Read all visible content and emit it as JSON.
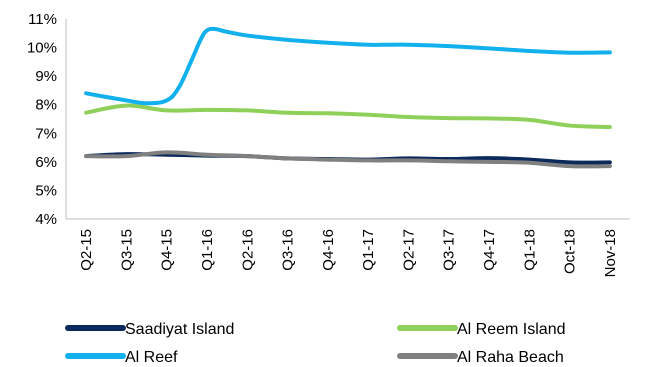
{
  "chart_data": {
    "type": "line",
    "title": "",
    "xlabel": "",
    "ylabel": "",
    "categories": [
      "Q2-15",
      "Q3-15",
      "Q4-15",
      "Q1-16",
      "Q2-16",
      "Q3-16",
      "Q4-16",
      "Q1-17",
      "Q2-17",
      "Q3-17",
      "Q4-17",
      "Q1-18",
      "Oct-18",
      "Nov-18"
    ],
    "yticks": [
      "4%",
      "5%",
      "6%",
      "7%",
      "8%",
      "9%",
      "10%",
      "11%"
    ],
    "ylim": [
      4,
      11
    ],
    "grid": false,
    "legend_position": "bottom",
    "series": [
      {
        "name": "Saadiyat Island",
        "color": "#0b2a5b",
        "points": [
          [
            0,
            6.2
          ],
          [
            1,
            6.27
          ],
          [
            2,
            6.25
          ],
          [
            3,
            6.22
          ],
          [
            4,
            6.2
          ],
          [
            5,
            6.12
          ],
          [
            6,
            6.1
          ],
          [
            7,
            6.08
          ],
          [
            8,
            6.12
          ],
          [
            9,
            6.1
          ],
          [
            10,
            6.13
          ],
          [
            11,
            6.08
          ],
          [
            12,
            5.98
          ],
          [
            13,
            5.98
          ]
        ]
      },
      {
        "name": "Al Reem Island",
        "color": "#8fd05a",
        "points": [
          [
            0,
            7.72
          ],
          [
            1,
            7.97
          ],
          [
            2,
            7.8
          ],
          [
            3,
            7.82
          ],
          [
            4,
            7.8
          ],
          [
            5,
            7.72
          ],
          [
            6,
            7.7
          ],
          [
            7,
            7.65
          ],
          [
            8,
            7.57
          ],
          [
            9,
            7.53
          ],
          [
            10,
            7.52
          ],
          [
            11,
            7.47
          ],
          [
            12,
            7.27
          ],
          [
            13,
            7.22
          ]
        ]
      },
      {
        "name": "Al Reef",
        "color": "#12b0ec",
        "points": [
          [
            0,
            8.4
          ],
          [
            0.5,
            8.27
          ],
          [
            1,
            8.15
          ],
          [
            1.5,
            8.05
          ],
          [
            2,
            8.15
          ],
          [
            2.3,
            8.6
          ],
          [
            2.6,
            9.5
          ],
          [
            2.85,
            10.3
          ],
          [
            3,
            10.6
          ],
          [
            3.2,
            10.65
          ],
          [
            3.5,
            10.55
          ],
          [
            4,
            10.42
          ],
          [
            5,
            10.27
          ],
          [
            6,
            10.17
          ],
          [
            7,
            10.1
          ],
          [
            8,
            10.1
          ],
          [
            9,
            10.05
          ],
          [
            10,
            9.97
          ],
          [
            11,
            9.88
          ],
          [
            12,
            9.82
          ],
          [
            13,
            9.83
          ]
        ]
      },
      {
        "name": "Al Raha Beach",
        "color": "#808080",
        "points": [
          [
            0,
            6.2
          ],
          [
            1,
            6.2
          ],
          [
            2,
            6.33
          ],
          [
            3,
            6.25
          ],
          [
            4,
            6.2
          ],
          [
            5,
            6.12
          ],
          [
            6,
            6.08
          ],
          [
            7,
            6.05
          ],
          [
            8,
            6.05
          ],
          [
            9,
            6.02
          ],
          [
            10,
            6.0
          ],
          [
            11,
            5.97
          ],
          [
            12,
            5.85
          ],
          [
            13,
            5.85
          ]
        ]
      }
    ]
  }
}
